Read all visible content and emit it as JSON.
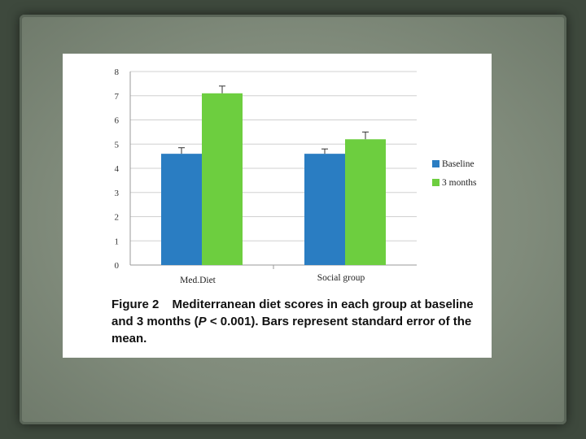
{
  "caption": {
    "label": "Figure 2",
    "text_before_p": "Mediterranean diet scores in each group at baseline and 3 months (",
    "p_symbol": "P",
    "text_after_p": " < 0.001). Bars represent standard error of the mean."
  },
  "colors": {
    "baseline": "#2a7dc2",
    "three_months": "#6dce3f",
    "grid": "#d0d0d0",
    "axis": "#999999",
    "error_bar": "#333333"
  },
  "chart_data": {
    "type": "bar",
    "categories": [
      "Med.Diet",
      "Social group"
    ],
    "series": [
      {
        "name": "Baseline",
        "values": [
          4.6,
          4.6
        ],
        "errors": [
          0.25,
          0.2
        ]
      },
      {
        "name": "3 months",
        "values": [
          7.1,
          5.2
        ],
        "errors": [
          0.3,
          0.3
        ]
      }
    ],
    "yticks": [
      0,
      1,
      2,
      3,
      4,
      5,
      6,
      7,
      8
    ],
    "ylim": [
      0,
      8
    ],
    "grid": true,
    "legend": "right"
  }
}
